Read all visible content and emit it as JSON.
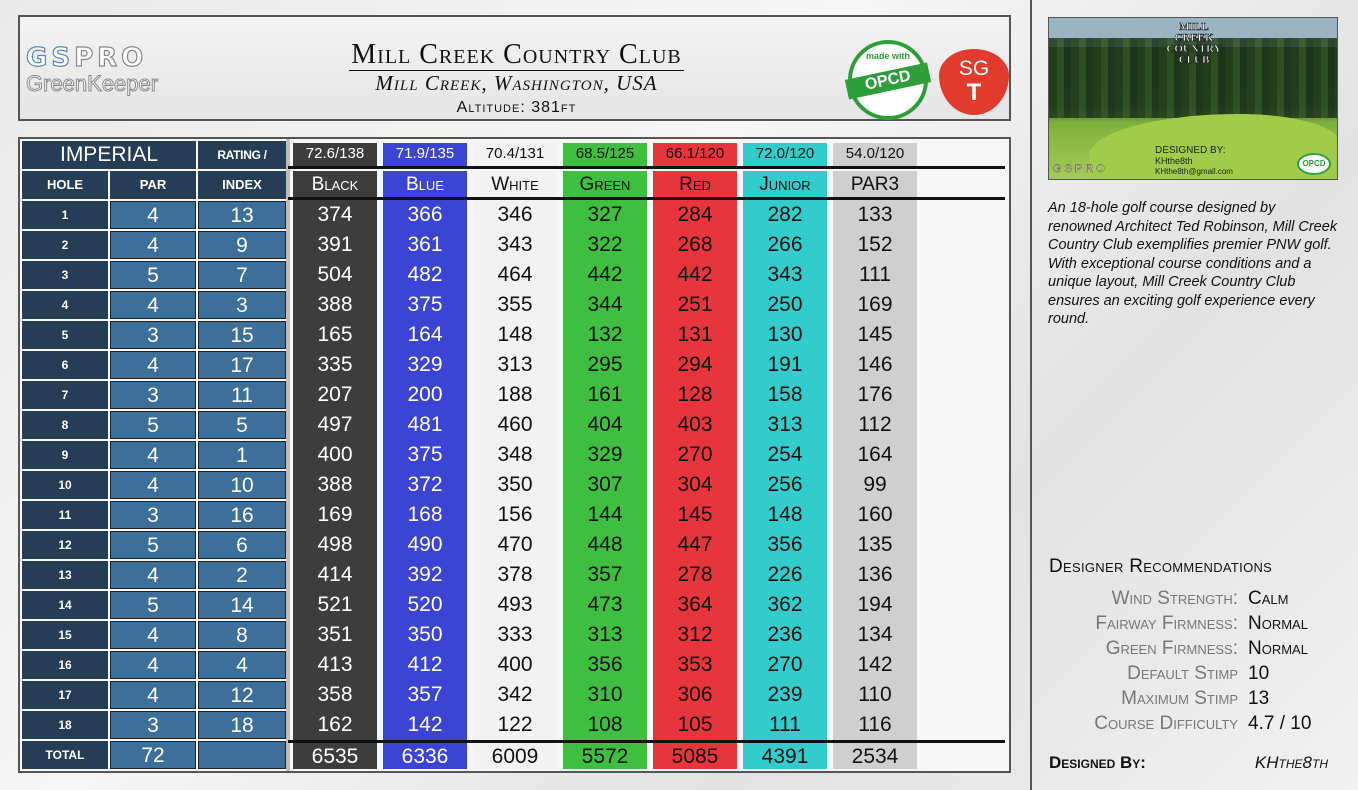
{
  "header": {
    "logo_primary_a": "GS",
    "logo_primary_b": "PRO",
    "logo_secondary": "GreenKeeper",
    "course_name": "Mill Creek Country Club",
    "location": "Mill Creek, Washington, USA",
    "altitude": "Altitude: 381ft",
    "opcd_made_with": "made with",
    "opcd_label": "OPCD",
    "sgt_top": "SG",
    "sgt_bottom": "T"
  },
  "table": {
    "units_label": "IMPERIAL",
    "rating_slope_label": "RATING / SLOPE",
    "col_hole": "HOLE",
    "col_par": "PAR",
    "col_index": "INDEX",
    "total_label": "TOTAL",
    "total_par": "72",
    "holes": [
      "1",
      "2",
      "3",
      "4",
      "5",
      "6",
      "7",
      "8",
      "9",
      "10",
      "11",
      "12",
      "13",
      "14",
      "15",
      "16",
      "17",
      "18"
    ],
    "par": [
      "4",
      "4",
      "5",
      "4",
      "3",
      "4",
      "3",
      "5",
      "4",
      "4",
      "3",
      "5",
      "4",
      "5",
      "4",
      "4",
      "4",
      "3"
    ],
    "index": [
      "13",
      "9",
      "7",
      "3",
      "15",
      "17",
      "11",
      "5",
      "1",
      "10",
      "16",
      "6",
      "2",
      "14",
      "8",
      "4",
      "12",
      "18"
    ],
    "tees": [
      {
        "name": "Black",
        "rating_slope": "72.6/138",
        "color": "#3d3d3d",
        "hdr_color": "#3d3d3d",
        "text_color": "#ffffff",
        "yards": [
          "374",
          "391",
          "504",
          "388",
          "165",
          "335",
          "207",
          "497",
          "400",
          "388",
          "169",
          "498",
          "414",
          "521",
          "351",
          "413",
          "358",
          "162"
        ],
        "total": "6535"
      },
      {
        "name": "Blue",
        "rating_slope": "71.9/135",
        "color": "#3c44d6",
        "hdr_color": "#3c44d6",
        "text_color": "#ffffff",
        "yards": [
          "366",
          "361",
          "482",
          "375",
          "164",
          "329",
          "200",
          "481",
          "375",
          "372",
          "168",
          "490",
          "392",
          "520",
          "350",
          "412",
          "357",
          "142"
        ],
        "total": "6336"
      },
      {
        "name": "White",
        "rating_slope": "70.4/131",
        "color": "#f2f2f2",
        "hdr_color": "#f2f2f2",
        "text_color": "#111111",
        "yards": [
          "346",
          "343",
          "464",
          "355",
          "148",
          "313",
          "188",
          "460",
          "348",
          "350",
          "156",
          "470",
          "378",
          "493",
          "333",
          "400",
          "342",
          "122"
        ],
        "total": "6009"
      },
      {
        "name": "Green",
        "rating_slope": "68.5/125",
        "color": "#3fbf3f",
        "hdr_color": "#3fbf3f",
        "text_color": "#111111",
        "yards": [
          "327",
          "322",
          "442",
          "344",
          "132",
          "295",
          "161",
          "404",
          "329",
          "307",
          "144",
          "448",
          "357",
          "473",
          "313",
          "356",
          "310",
          "108"
        ],
        "total": "5572"
      },
      {
        "name": "Red",
        "rating_slope": "66.1/120",
        "color": "#e8353b",
        "hdr_color": "#e8353b",
        "text_color": "#111111",
        "yards": [
          "284",
          "268",
          "442",
          "251",
          "131",
          "294",
          "128",
          "403",
          "270",
          "304",
          "145",
          "447",
          "278",
          "364",
          "312",
          "353",
          "306",
          "105"
        ],
        "total": "5085"
      },
      {
        "name": "Junior",
        "rating_slope": "72.0/120",
        "color": "#33cccc",
        "hdr_color": "#33cccc",
        "text_color": "#111111",
        "yards": [
          "282",
          "266",
          "343",
          "250",
          "130",
          "191",
          "158",
          "313",
          "254",
          "256",
          "148",
          "356",
          "226",
          "362",
          "236",
          "270",
          "239",
          "111"
        ],
        "total": "4391"
      },
      {
        "name": "PAR3",
        "rating_slope": "54.0/120",
        "color": "#cfcfcf",
        "hdr_color": "#cfcfcf",
        "text_color": "#111111",
        "yards": [
          "133",
          "152",
          "111",
          "169",
          "145",
          "146",
          "176",
          "112",
          "164",
          "99",
          "160",
          "135",
          "136",
          "194",
          "134",
          "142",
          "110",
          "116"
        ],
        "total": "2534"
      }
    ]
  },
  "photo": {
    "club_logo_1": "MILL",
    "club_logo_2": "CREEK",
    "club_logo_3": "COUNTRY",
    "club_logo_4": "CLUB",
    "gspro": "GSPRO",
    "designed_by": "DESIGNED BY:",
    "designer": "KHthe8th",
    "email": "KHthe8th@gmail.com",
    "opcd": "OPCD"
  },
  "description": "An 18-hole golf course designed by renowned Architect Ted Robinson, Mill Creek Country Club exemplifies premier PNW golf. With exceptional course conditions and a unique layout, Mill Creek Country Club ensures an exciting golf experience every round.",
  "recommendations": {
    "title": "Designer Recommendations",
    "items": [
      {
        "label": "Wind Strength:",
        "value": "Calm"
      },
      {
        "label": "Fairway Firmness:",
        "value": "Normal"
      },
      {
        "label": "Green Firmness:",
        "value": "Normal"
      },
      {
        "label": "Default Stimp",
        "value": "10"
      },
      {
        "label": "Maximum Stimp",
        "value": "13"
      },
      {
        "label": "Course Difficulty",
        "value": "4.7 / 10"
      }
    ]
  },
  "designer": {
    "label": "Designed By:",
    "name": "KHthe8th"
  }
}
